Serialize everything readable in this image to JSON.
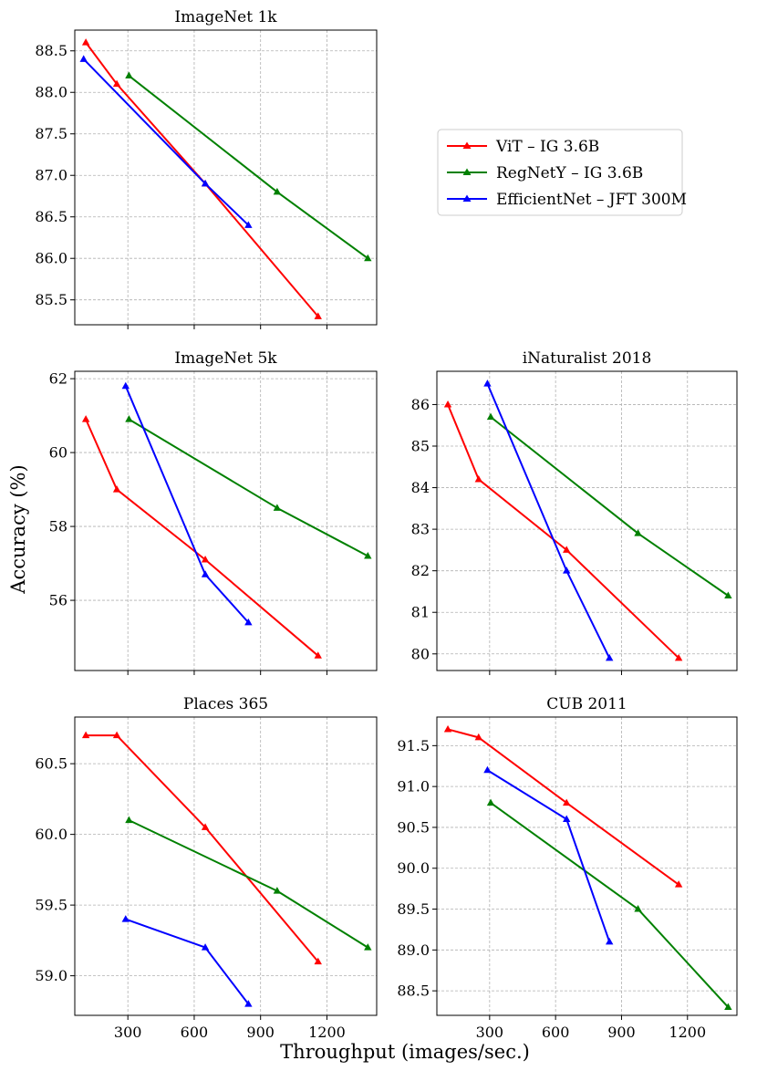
{
  "figure": {
    "ylabel": "Accuracy (%)",
    "xlabel": "Throughput (images/sec.)",
    "series_colors": [
      "#ff0000",
      "#008000",
      "#0000ff"
    ]
  },
  "legend": {
    "entries": [
      "ViT – IG 3.6B",
      "RegNetY – IG 3.6B",
      "EfficientNet – JFT 300M"
    ]
  },
  "chart_data": [
    {
      "type": "line",
      "title": "ImageNet 1k",
      "xlim": [
        60,
        1425
      ],
      "ylim": [
        85.2,
        88.75
      ],
      "xticks": [
        300,
        600,
        900,
        1200
      ],
      "yticks": [
        85.5,
        86.0,
        86.5,
        87.0,
        87.5,
        88.0,
        88.5
      ],
      "ytick_labels": [
        "85.5",
        "86.0",
        "86.5",
        "87.0",
        "87.5",
        "88.0",
        "88.5"
      ],
      "show_xtick_labels": false,
      "grid": true,
      "legend": "outside-right",
      "series": [
        {
          "name": "ViT – IG 3.6B",
          "x": [
            110,
            250,
            650,
            1160
          ],
          "y": [
            88.6,
            88.1,
            86.9,
            85.3
          ]
        },
        {
          "name": "RegNetY – IG 3.6B",
          "x": [
            305,
            975,
            1385
          ],
          "y": [
            88.2,
            86.8,
            86.0
          ]
        },
        {
          "name": "EfficientNet – JFT 300M",
          "x": [
            100,
            650,
            845
          ],
          "y": [
            88.4,
            86.9,
            86.4
          ]
        }
      ]
    },
    {
      "type": "line",
      "title": "ImageNet 5k",
      "xlim": [
        60,
        1425
      ],
      "ylim": [
        54.1,
        62.2
      ],
      "xticks": [
        300,
        600,
        900,
        1200
      ],
      "yticks": [
        56,
        58,
        60,
        62
      ],
      "ytick_labels": [
        "56",
        "58",
        "60",
        "62"
      ],
      "show_xtick_labels": false,
      "grid": true,
      "series": [
        {
          "name": "ViT – IG 3.6B",
          "x": [
            110,
            250,
            650,
            1160
          ],
          "y": [
            60.9,
            59.0,
            57.1,
            54.5
          ]
        },
        {
          "name": "RegNetY – IG 3.6B",
          "x": [
            305,
            975,
            1385
          ],
          "y": [
            60.9,
            58.5,
            57.2
          ]
        },
        {
          "name": "EfficientNet – JFT 300M",
          "x": [
            290,
            650,
            845
          ],
          "y": [
            61.8,
            56.7,
            55.4
          ]
        }
      ]
    },
    {
      "type": "line",
      "title": "iNaturalist 2018",
      "xlim": [
        60,
        1425
      ],
      "ylim": [
        79.6,
        86.8
      ],
      "xticks": [
        300,
        600,
        900,
        1200
      ],
      "yticks": [
        80,
        81,
        82,
        83,
        84,
        85,
        86
      ],
      "ytick_labels": [
        "80",
        "81",
        "82",
        "83",
        "84",
        "85",
        "86"
      ],
      "show_xtick_labels": false,
      "grid": true,
      "series": [
        {
          "name": "ViT – IG 3.6B",
          "x": [
            110,
            250,
            650,
            1160
          ],
          "y": [
            86.0,
            84.2,
            82.5,
            79.9
          ]
        },
        {
          "name": "RegNetY – IG 3.6B",
          "x": [
            305,
            975,
            1385
          ],
          "y": [
            85.7,
            82.9,
            81.4
          ]
        },
        {
          "name": "EfficientNet – JFT 300M",
          "x": [
            290,
            650,
            845
          ],
          "y": [
            86.5,
            82.0,
            79.9
          ]
        }
      ]
    },
    {
      "type": "line",
      "title": "Places 365",
      "xlim": [
        60,
        1425
      ],
      "ylim": [
        58.72,
        60.83
      ],
      "xticks": [
        300,
        600,
        900,
        1200
      ],
      "yticks": [
        59.0,
        59.5,
        60.0,
        60.5
      ],
      "ytick_labels": [
        "59.0",
        "59.5",
        "60.0",
        "60.5"
      ],
      "xtick_labels": [
        "300",
        "600",
        "900",
        "1200"
      ],
      "show_xtick_labels": true,
      "grid": true,
      "series": [
        {
          "name": "ViT – IG 3.6B",
          "x": [
            110,
            250,
            650,
            1160
          ],
          "y": [
            60.7,
            60.7,
            60.05,
            59.1
          ]
        },
        {
          "name": "RegNetY – IG 3.6B",
          "x": [
            305,
            975,
            1385
          ],
          "y": [
            60.1,
            59.6,
            59.2
          ]
        },
        {
          "name": "EfficientNet – JFT 300M",
          "x": [
            290,
            650,
            845
          ],
          "y": [
            59.4,
            59.2,
            58.8
          ]
        }
      ]
    },
    {
      "type": "line",
      "title": "CUB 2011",
      "xlim": [
        60,
        1425
      ],
      "ylim": [
        88.2,
        91.85
      ],
      "xticks": [
        300,
        600,
        900,
        1200
      ],
      "yticks": [
        88.5,
        89.0,
        89.5,
        90.0,
        90.5,
        91.0,
        91.5
      ],
      "ytick_labels": [
        "88.5",
        "89.0",
        "89.5",
        "90.0",
        "90.5",
        "91.0",
        "91.5"
      ],
      "xtick_labels": [
        "300",
        "600",
        "900",
        "1200"
      ],
      "show_xtick_labels": true,
      "grid": true,
      "series": [
        {
          "name": "ViT – IG 3.6B",
          "x": [
            110,
            250,
            650,
            1160
          ],
          "y": [
            91.7,
            91.6,
            90.8,
            89.8
          ]
        },
        {
          "name": "RegNetY – IG 3.6B",
          "x": [
            305,
            975,
            1385
          ],
          "y": [
            90.8,
            89.5,
            88.3
          ]
        },
        {
          "name": "EfficientNet – JFT 300M",
          "x": [
            290,
            650,
            845
          ],
          "y": [
            91.2,
            90.6,
            89.1
          ]
        }
      ]
    }
  ]
}
